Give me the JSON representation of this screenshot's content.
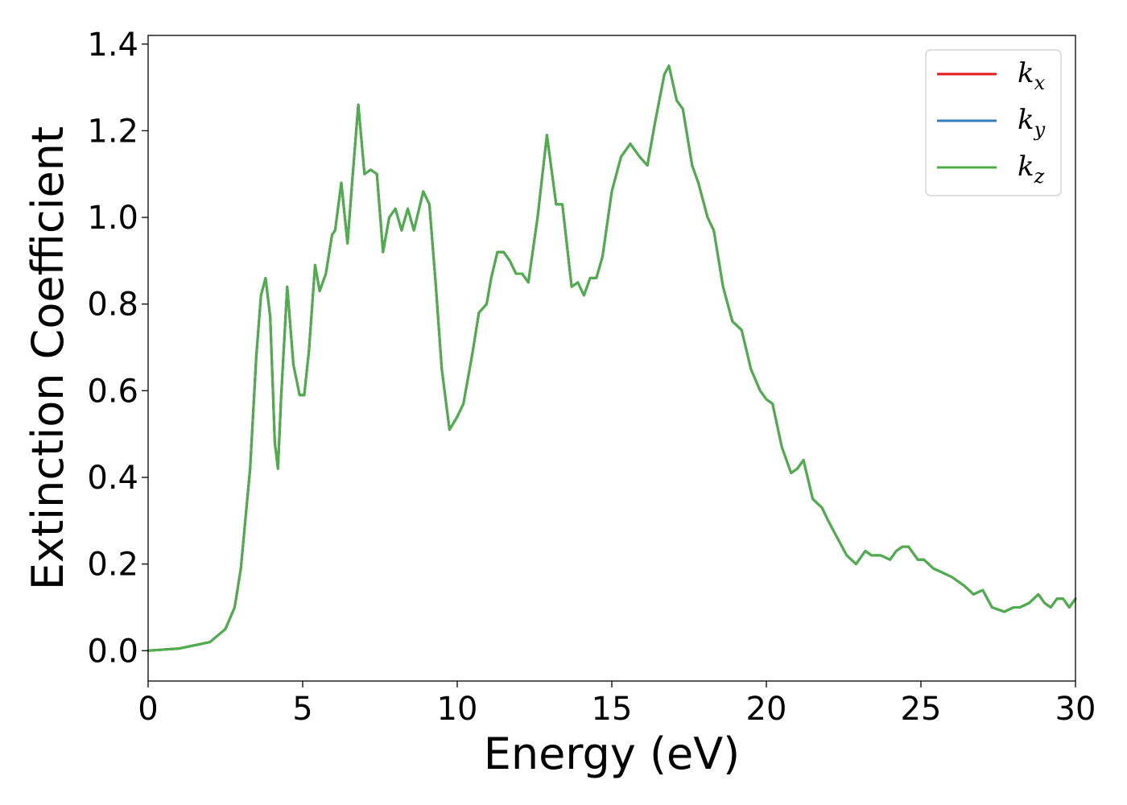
{
  "chart_data": {
    "type": "line",
    "title": "",
    "xlabel": "Energy (eV)",
    "ylabel": "Extinction Coefficient",
    "xlim": [
      0,
      30
    ],
    "ylim": [
      -0.07,
      1.42
    ],
    "xticks": [
      0,
      5,
      10,
      15,
      20,
      25,
      30
    ],
    "yticks": [
      0.0,
      0.2,
      0.4,
      0.6,
      0.8,
      1.0,
      1.2,
      1.4
    ],
    "ytick_labels": [
      "0.0",
      "0.2",
      "0.4",
      "0.6",
      "0.8",
      "1.0",
      "1.2",
      "1.4"
    ],
    "grid": false,
    "legend_position": "top-right",
    "series": [
      {
        "name": "k",
        "subscript": "x",
        "color": "#e41a1c"
      },
      {
        "name": "k",
        "subscript": "y",
        "color": "#377eb8"
      },
      {
        "name": "k",
        "subscript": "z",
        "color": "#4daf4a"
      }
    ],
    "x": [
      0,
      1.0,
      2.0,
      2.5,
      2.8,
      3.0,
      3.3,
      3.5,
      3.65,
      3.8,
      3.95,
      4.1,
      4.2,
      4.3,
      4.5,
      4.7,
      4.9,
      5.05,
      5.2,
      5.4,
      5.55,
      5.75,
      5.95,
      6.05,
      6.25,
      6.45,
      6.6,
      6.8,
      7.0,
      7.2,
      7.4,
      7.6,
      7.8,
      8.0,
      8.2,
      8.4,
      8.6,
      8.9,
      9.1,
      9.3,
      9.5,
      9.75,
      10.0,
      10.2,
      10.5,
      10.7,
      10.95,
      11.1,
      11.3,
      11.5,
      11.7,
      11.9,
      12.1,
      12.3,
      12.6,
      12.9,
      13.2,
      13.4,
      13.7,
      13.9,
      14.1,
      14.3,
      14.5,
      14.7,
      15.0,
      15.3,
      15.6,
      15.9,
      16.15,
      16.4,
      16.7,
      16.85,
      17.1,
      17.3,
      17.6,
      17.8,
      18.1,
      18.3,
      18.6,
      18.9,
      19.2,
      19.5,
      19.8,
      20.0,
      20.2,
      20.5,
      20.8,
      21.0,
      21.2,
      21.5,
      21.8,
      22.0,
      22.3,
      22.6,
      22.9,
      23.2,
      23.4,
      23.7,
      24.0,
      24.2,
      24.4,
      24.6,
      24.9,
      25.1,
      25.4,
      25.7,
      26.0,
      26.4,
      26.7,
      27.0,
      27.3,
      27.7,
      28.0,
      28.2,
      28.5,
      28.8,
      29.0,
      29.2,
      29.4,
      29.6,
      29.8,
      30.0
    ],
    "values": [
      0.0,
      0.005,
      0.02,
      0.05,
      0.1,
      0.19,
      0.42,
      0.68,
      0.82,
      0.86,
      0.77,
      0.48,
      0.42,
      0.58,
      0.84,
      0.66,
      0.59,
      0.59,
      0.69,
      0.89,
      0.83,
      0.87,
      0.96,
      0.97,
      1.08,
      0.94,
      1.08,
      1.26,
      1.1,
      1.11,
      1.1,
      0.92,
      1.0,
      1.02,
      0.97,
      1.02,
      0.97,
      1.06,
      1.03,
      0.85,
      0.65,
      0.51,
      0.54,
      0.57,
      0.69,
      0.78,
      0.8,
      0.86,
      0.92,
      0.92,
      0.9,
      0.87,
      0.87,
      0.85,
      1.0,
      1.19,
      1.03,
      1.03,
      0.84,
      0.85,
      0.82,
      0.86,
      0.86,
      0.91,
      1.06,
      1.14,
      1.17,
      1.14,
      1.12,
      1.22,
      1.33,
      1.35,
      1.27,
      1.25,
      1.12,
      1.08,
      1.0,
      0.97,
      0.84,
      0.76,
      0.74,
      0.65,
      0.6,
      0.58,
      0.57,
      0.47,
      0.41,
      0.42,
      0.44,
      0.35,
      0.33,
      0.3,
      0.26,
      0.22,
      0.2,
      0.23,
      0.22,
      0.22,
      0.21,
      0.23,
      0.24,
      0.24,
      0.21,
      0.21,
      0.19,
      0.18,
      0.17,
      0.15,
      0.13,
      0.14,
      0.1,
      0.09,
      0.1,
      0.1,
      0.11,
      0.13,
      0.11,
      0.1,
      0.12,
      0.12,
      0.1,
      0.12
    ]
  }
}
